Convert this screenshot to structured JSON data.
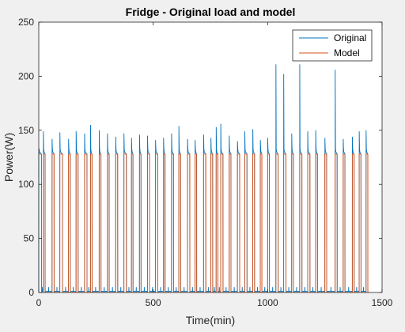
{
  "chart_data": {
    "type": "line",
    "title": "Fridge - Original load and model",
    "xlabel": "Time(min)",
    "ylabel": "Power(W)",
    "xlim": [
      0,
      1500
    ],
    "ylim": [
      0,
      250
    ],
    "xticks": [
      0,
      500,
      1000,
      1500
    ],
    "yticks": [
      0,
      50,
      100,
      150,
      200,
      250
    ],
    "grid": false,
    "legend_position": "top-right",
    "colors": {
      "Original": "#0072BD",
      "Model": "#D95319"
    },
    "model_on_level": 128,
    "series": [
      {
        "name": "Original",
        "peaks": [
          {
            "x": 2,
            "y": 128
          },
          {
            "x": 20,
            "y": 149
          },
          {
            "x": 58,
            "y": 142
          },
          {
            "x": 92,
            "y": 148
          },
          {
            "x": 130,
            "y": 142
          },
          {
            "x": 163,
            "y": 149
          },
          {
            "x": 200,
            "y": 147
          },
          {
            "x": 226,
            "y": 155
          },
          {
            "x": 264,
            "y": 150
          },
          {
            "x": 300,
            "y": 147
          },
          {
            "x": 336,
            "y": 144
          },
          {
            "x": 372,
            "y": 147
          },
          {
            "x": 405,
            "y": 143
          },
          {
            "x": 440,
            "y": 146
          },
          {
            "x": 475,
            "y": 145
          },
          {
            "x": 510,
            "y": 141
          },
          {
            "x": 545,
            "y": 143
          },
          {
            "x": 580,
            "y": 147
          },
          {
            "x": 612,
            "y": 154
          },
          {
            "x": 650,
            "y": 142
          },
          {
            "x": 683,
            "y": 141
          },
          {
            "x": 720,
            "y": 146
          },
          {
            "x": 752,
            "y": 143
          },
          {
            "x": 775,
            "y": 153
          },
          {
            "x": 795,
            "y": 156
          },
          {
            "x": 832,
            "y": 145
          },
          {
            "x": 868,
            "y": 140
          },
          {
            "x": 900,
            "y": 149
          },
          {
            "x": 935,
            "y": 151
          },
          {
            "x": 968,
            "y": 141
          },
          {
            "x": 1000,
            "y": 143
          },
          {
            "x": 1036,
            "y": 211
          },
          {
            "x": 1070,
            "y": 202
          },
          {
            "x": 1105,
            "y": 147
          },
          {
            "x": 1140,
            "y": 211
          },
          {
            "x": 1175,
            "y": 149
          },
          {
            "x": 1210,
            "y": 150
          },
          {
            "x": 1250,
            "y": 143
          },
          {
            "x": 1295,
            "y": 206
          },
          {
            "x": 1330,
            "y": 142
          },
          {
            "x": 1370,
            "y": 144
          },
          {
            "x": 1400,
            "y": 149
          },
          {
            "x": 1430,
            "y": 150
          }
        ],
        "on_level": 129,
        "off_level": 1
      },
      {
        "name": "Model",
        "on_intervals": [
          [
            0,
            12
          ],
          [
            20,
            28
          ],
          [
            58,
            67
          ],
          [
            92,
            104
          ],
          [
            130,
            138
          ],
          [
            163,
            172
          ],
          [
            200,
            211
          ],
          [
            226,
            233
          ],
          [
            264,
            272
          ],
          [
            300,
            308
          ],
          [
            336,
            345
          ],
          [
            372,
            383
          ],
          [
            405,
            412
          ],
          [
            440,
            447
          ],
          [
            475,
            484
          ],
          [
            510,
            520
          ],
          [
            545,
            552
          ],
          [
            580,
            589
          ],
          [
            612,
            620
          ],
          [
            650,
            660
          ],
          [
            683,
            690
          ],
          [
            720,
            730
          ],
          [
            752,
            760
          ],
          [
            775,
            783
          ],
          [
            795,
            805
          ],
          [
            832,
            840
          ],
          [
            868,
            878
          ],
          [
            900,
            910
          ],
          [
            935,
            943
          ],
          [
            968,
            975
          ],
          [
            1000,
            1008
          ],
          [
            1036,
            1046
          ],
          [
            1070,
            1080
          ],
          [
            1105,
            1113
          ],
          [
            1140,
            1150
          ],
          [
            1175,
            1185
          ],
          [
            1210,
            1218
          ],
          [
            1250,
            1258
          ],
          [
            1295,
            1304
          ],
          [
            1330,
            1338
          ],
          [
            1370,
            1378
          ],
          [
            1400,
            1408
          ],
          [
            1430,
            1438
          ]
        ]
      }
    ]
  }
}
